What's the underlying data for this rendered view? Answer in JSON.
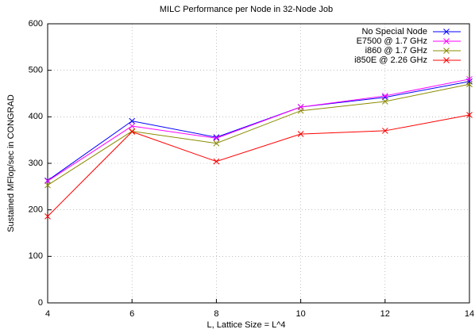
{
  "chart_data": {
    "type": "line",
    "title": "MILC Performance per Node in 32-Node Job",
    "x_label": "L, Lattice Size = L^4",
    "y_label": "Sustained MFlop/sec in CONGRAD",
    "x": [
      4,
      6,
      8,
      10,
      12,
      14
    ],
    "series": [
      {
        "name": "No Special Node",
        "color": "#0000ff",
        "values": [
          263,
          391,
          356,
          421,
          442,
          476
        ]
      },
      {
        "name": "E7500 @ 1.7 GHz",
        "color": "#ff00ff",
        "values": [
          262,
          380,
          354,
          421,
          445,
          481
        ]
      },
      {
        "name": "i860 @ 1.7 GHz",
        "color": "#8b8b00",
        "values": [
          253,
          369,
          343,
          413,
          433,
          470
        ]
      },
      {
        "name": "i850E @ 2.26 GHz",
        "color": "#ff0000",
        "values": [
          186,
          368,
          304,
          363,
          370,
          404
        ]
      }
    ],
    "xlim": [
      4,
      14
    ],
    "xticks": [
      4,
      6,
      8,
      10,
      12,
      14
    ],
    "ylim": [
      0,
      600
    ],
    "yticks": [
      0,
      100,
      200,
      300,
      400,
      500,
      600
    ],
    "grid": true,
    "legend": "top-right"
  }
}
